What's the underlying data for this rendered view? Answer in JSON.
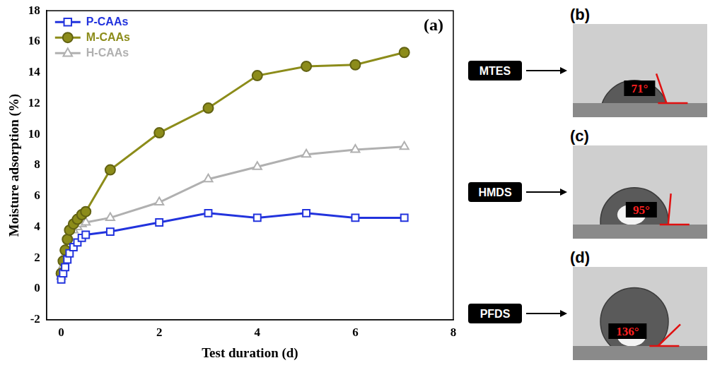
{
  "chart_data": {
    "type": "line",
    "panel_label": "(a)",
    "x_label": "Test duration (d)",
    "y_label": "Moisture adsorption (%)",
    "x": [
      0,
      0.04,
      0.08,
      0.125,
      0.17,
      0.25,
      0.33,
      0.42,
      0.5,
      1,
      2,
      3,
      4,
      5,
      6,
      7
    ],
    "series": [
      {
        "name": "P-CAAs",
        "color": "#2233dd",
        "marker": "open-square",
        "values": [
          0.6,
          1.0,
          1.4,
          1.9,
          2.3,
          2.7,
          3.0,
          3.3,
          3.5,
          3.7,
          4.3,
          4.9,
          4.6,
          4.9,
          4.6,
          4.6
        ]
      },
      {
        "name": "M-CAAs",
        "color": "#8c8c1a",
        "marker": "circle",
        "values": [
          1.0,
          1.8,
          2.5,
          3.2,
          3.8,
          4.2,
          4.5,
          4.8,
          5.0,
          7.7,
          10.1,
          11.7,
          13.8,
          14.4,
          14.5,
          15.3
        ]
      },
      {
        "name": "H-CAAs",
        "color": "#b0b0b0",
        "marker": "open-triangle",
        "values": [
          0.8,
          1.5,
          2.2,
          2.8,
          3.3,
          3.8,
          4.0,
          4.2,
          4.3,
          4.6,
          5.6,
          7.1,
          7.9,
          8.7,
          9.0,
          9.2
        ]
      }
    ],
    "xlim": [
      -0.3,
      8
    ],
    "xticks": [
      0,
      2,
      4,
      6,
      8
    ],
    "ylim": [
      -2,
      18
    ],
    "yticks": [
      -2,
      0,
      2,
      4,
      6,
      8,
      10,
      12,
      14,
      16,
      18
    ],
    "grid": false,
    "legend": "upper left"
  },
  "insets": [
    {
      "letter": "(b)",
      "reagent": "MTES",
      "contact_angle": {
        "value": 71,
        "label": "71°"
      }
    },
    {
      "letter": "(c)",
      "reagent": "HMDS",
      "contact_angle": {
        "value": 95,
        "label": "95°"
      }
    },
    {
      "letter": "(d)",
      "reagent": "PFDS",
      "contact_angle": {
        "value": 136,
        "label": "136°"
      }
    }
  ]
}
